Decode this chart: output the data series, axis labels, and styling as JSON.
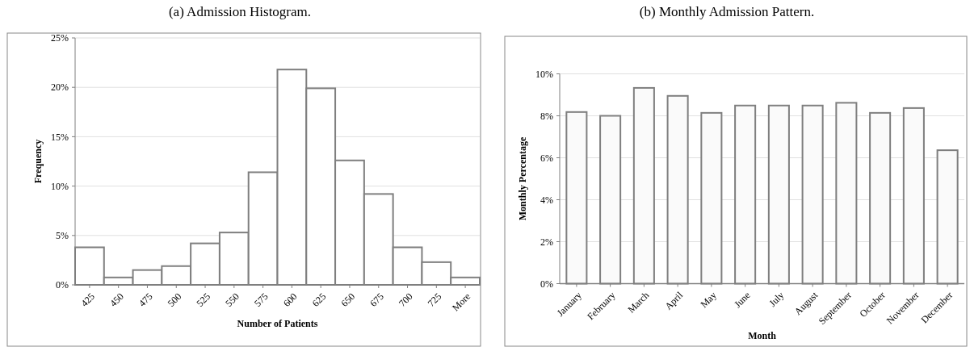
{
  "chart_data": [
    {
      "type": "bar",
      "title": "(a) Admission Histogram.",
      "xlabel": "Number of Patients",
      "ylabel": "Frequency",
      "categories": [
        "425",
        "450",
        "475",
        "500",
        "525",
        "550",
        "575",
        "600",
        "625",
        "650",
        "675",
        "700",
        "725",
        "More"
      ],
      "values": [
        3.8,
        0.75,
        1.5,
        1.9,
        4.2,
        5.3,
        11.4,
        21.8,
        19.9,
        12.6,
        9.2,
        3.8,
        2.3,
        0.75
      ],
      "color": "#ffffff",
      "ylim": [
        0,
        25
      ],
      "yticks": [
        {
          "value": 0,
          "label": "0%"
        },
        {
          "value": 5,
          "label": "5%"
        },
        {
          "value": 10,
          "label": "10%"
        },
        {
          "value": 15,
          "label": "15%"
        },
        {
          "value": 20,
          "label": "20%"
        },
        {
          "value": 25,
          "label": "25%"
        }
      ],
      "grid": "y"
    },
    {
      "type": "bar",
      "title": "(b) Monthly Admission Pattern.",
      "xlabel": "Month",
      "ylabel": "Monthly Percentage",
      "categories": [
        "January",
        "February",
        "March",
        "April",
        "May",
        "June",
        "July",
        "August",
        "September",
        "October",
        "November",
        "December"
      ],
      "values": [
        8.18,
        8.0,
        9.33,
        8.95,
        8.14,
        8.49,
        8.49,
        8.49,
        8.62,
        8.14,
        8.37,
        6.36
      ],
      "color": "#fafafa",
      "ylim": [
        0,
        10
      ],
      "yticks": [
        {
          "value": 0,
          "label": "0%"
        },
        {
          "value": 2,
          "label": "2%"
        },
        {
          "value": 4,
          "label": "4%"
        },
        {
          "value": 6,
          "label": "6%"
        },
        {
          "value": 8,
          "label": "8%"
        },
        {
          "value": 10,
          "label": "10%"
        }
      ],
      "grid": "y"
    }
  ]
}
